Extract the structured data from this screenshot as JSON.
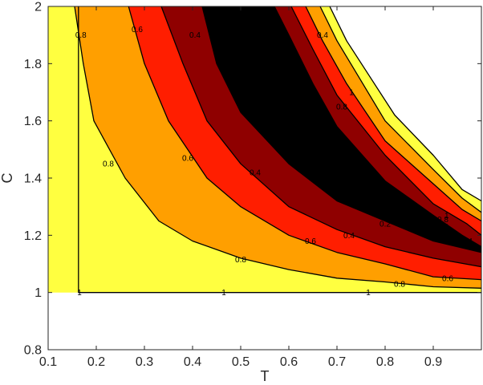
{
  "chart_data": {
    "type": "heatmap",
    "subtype": "filled-contour",
    "title": "",
    "xlabel": "T",
    "ylabel": "C",
    "xlim": [
      0.1,
      1.0
    ],
    "ylim": [
      0.8,
      2.0
    ],
    "grid": false,
    "xticks": [
      {
        "value": 0.1,
        "label": "0.1"
      },
      {
        "value": 0.2,
        "label": "0.2"
      },
      {
        "value": 0.3,
        "label": "0.3"
      },
      {
        "value": 0.4,
        "label": "0.4"
      },
      {
        "value": 0.5,
        "label": "0.5"
      },
      {
        "value": 0.6,
        "label": "0.6"
      },
      {
        "value": 0.7,
        "label": "0.7"
      },
      {
        "value": 0.8,
        "label": "0.8"
      },
      {
        "value": 0.9,
        "label": "0.9"
      }
    ],
    "yticks": [
      {
        "value": 0.8,
        "label": "0.8"
      },
      {
        "value": 1.0,
        "label": "1"
      },
      {
        "value": 1.2,
        "label": "1.2"
      },
      {
        "value": 1.4,
        "label": "1.4"
      },
      {
        "value": 1.6,
        "label": "1.6"
      },
      {
        "value": 1.8,
        "label": "1.8"
      },
      {
        "value": 2.0,
        "label": "2"
      }
    ],
    "colors": {
      "ge_1.0": "#ffff40",
      "0.8_to_1.0": "#ffff40",
      "0.6_to_0.8": "#ff9f00",
      "0.4_to_0.6": "#ff1e00",
      "0.2_to_0.4": "#8f0000",
      "lt_0.2": "#000000",
      "undefined": "#ffffff"
    },
    "levels": [
      1.0,
      0.8,
      0.6,
      0.4,
      0.2
    ],
    "contours": [
      {
        "level": 1.0,
        "side": "left",
        "points": [
          [
            0.163,
            2.0
          ],
          [
            0.163,
            1.0
          ],
          [
            1.0,
            1.0
          ]
        ]
      },
      {
        "level": 0.8,
        "side": "left",
        "points": [
          [
            0.155,
            2.0
          ],
          [
            0.173,
            1.8
          ],
          [
            0.195,
            1.6
          ],
          [
            0.26,
            1.4
          ],
          [
            0.33,
            1.25
          ],
          [
            0.4,
            1.18
          ],
          [
            0.5,
            1.12
          ],
          [
            0.6,
            1.08
          ],
          [
            0.7,
            1.05
          ],
          [
            0.8,
            1.037
          ],
          [
            0.9,
            1.02
          ],
          [
            1.0,
            1.015
          ]
        ]
      },
      {
        "level": 0.6,
        "side": "left",
        "points": [
          [
            0.267,
            2.0
          ],
          [
            0.3,
            1.8
          ],
          [
            0.35,
            1.6
          ],
          [
            0.43,
            1.4
          ],
          [
            0.5,
            1.3
          ],
          [
            0.6,
            1.2
          ],
          [
            0.7,
            1.14
          ],
          [
            0.8,
            1.1
          ],
          [
            0.9,
            1.055
          ],
          [
            1.0,
            1.045
          ]
        ]
      },
      {
        "level": 0.4,
        "side": "left",
        "points": [
          [
            0.335,
            2.0
          ],
          [
            0.38,
            1.8
          ],
          [
            0.43,
            1.6
          ],
          [
            0.5,
            1.45
          ],
          [
            0.6,
            1.3
          ],
          [
            0.7,
            1.22
          ],
          [
            0.8,
            1.16
          ],
          [
            0.9,
            1.12
          ],
          [
            1.0,
            1.09
          ]
        ]
      },
      {
        "level": 0.2,
        "side": "left",
        "points": [
          [
            0.42,
            2.0
          ],
          [
            0.45,
            1.8
          ],
          [
            0.5,
            1.63
          ],
          [
            0.6,
            1.45
          ],
          [
            0.7,
            1.32
          ],
          [
            0.8,
            1.25
          ],
          [
            0.9,
            1.18
          ],
          [
            1.0,
            1.14
          ]
        ]
      },
      {
        "level": 0.2,
        "side": "right",
        "points": [
          [
            0.57,
            2.0
          ],
          [
            0.6,
            1.9
          ],
          [
            0.65,
            1.73
          ],
          [
            0.7,
            1.58
          ],
          [
            0.8,
            1.39
          ],
          [
            0.9,
            1.27
          ],
          [
            0.96,
            1.2
          ],
          [
            1.0,
            1.16
          ]
        ]
      },
      {
        "level": 0.4,
        "side": "right",
        "points": [
          [
            0.605,
            2.0
          ],
          [
            0.65,
            1.85
          ],
          [
            0.7,
            1.69
          ],
          [
            0.8,
            1.48
          ],
          [
            0.9,
            1.31
          ],
          [
            0.97,
            1.24
          ],
          [
            1.0,
            1.2
          ]
        ]
      },
      {
        "level": 0.6,
        "side": "right",
        "points": [
          [
            0.635,
            2.0
          ],
          [
            0.67,
            1.88
          ],
          [
            0.72,
            1.73
          ],
          [
            0.8,
            1.53
          ],
          [
            0.9,
            1.38
          ],
          [
            0.96,
            1.29
          ],
          [
            1.0,
            1.25
          ]
        ]
      },
      {
        "level": 0.8,
        "side": "right",
        "points": [
          [
            0.665,
            2.0
          ],
          [
            0.7,
            1.88
          ],
          [
            0.75,
            1.74
          ],
          [
            0.8,
            1.6
          ],
          [
            0.9,
            1.43
          ],
          [
            0.96,
            1.33
          ],
          [
            1.0,
            1.28
          ]
        ]
      },
      {
        "level": 1.0,
        "side": "right",
        "points": [
          [
            0.685,
            2.0
          ],
          [
            0.72,
            1.88
          ],
          [
            0.77,
            1.75
          ],
          [
            0.82,
            1.62
          ],
          [
            0.9,
            1.48
          ],
          [
            0.96,
            1.36
          ],
          [
            1.0,
            1.32
          ]
        ]
      }
    ],
    "contour_labels": [
      {
        "text": "1",
        "x": 0.165,
        "y": 1.0
      },
      {
        "text": "1",
        "x": 0.465,
        "y": 1.0
      },
      {
        "text": "1",
        "x": 0.765,
        "y": 1.0
      },
      {
        "text": "0.8",
        "x": 0.168,
        "y": 1.9
      },
      {
        "text": "0.8",
        "x": 0.225,
        "y": 1.45
      },
      {
        "text": "0.8",
        "x": 0.5,
        "y": 1.115
      },
      {
        "text": "0.8",
        "x": 0.83,
        "y": 1.03
      },
      {
        "text": "0.6",
        "x": 0.285,
        "y": 1.92
      },
      {
        "text": "0.6",
        "x": 0.39,
        "y": 1.47
      },
      {
        "text": "0.6",
        "x": 0.645,
        "y": 1.18
      },
      {
        "text": "0.6",
        "x": 0.93,
        "y": 1.05
      },
      {
        "text": "0.4",
        "x": 0.405,
        "y": 1.9
      },
      {
        "text": "0.4",
        "x": 0.53,
        "y": 1.42
      },
      {
        "text": "0.4",
        "x": 0.725,
        "y": 1.2
      },
      {
        "text": "0.2",
        "x": 0.8,
        "y": 1.24
      },
      {
        "text": "0.4",
        "x": 0.67,
        "y": 1.9
      },
      {
        "text": "0.6",
        "x": 0.68,
        "y": 1.6
      },
      {
        "text": "0.8",
        "x": 0.71,
        "y": 1.65
      },
      {
        "text": "1",
        "x": 0.73,
        "y": 1.7
      },
      {
        "text": "1",
        "x": 0.928,
        "y": 1.27
      },
      {
        "text": "0.8",
        "x": 0.92,
        "y": 1.255
      },
      {
        "text": "0.6",
        "x": 0.92,
        "y": 1.23
      },
      {
        "text": "0.4",
        "x": 0.97,
        "y": 1.18
      },
      {
        "text": "0.2",
        "x": 0.74,
        "y": 1.43
      }
    ]
  }
}
